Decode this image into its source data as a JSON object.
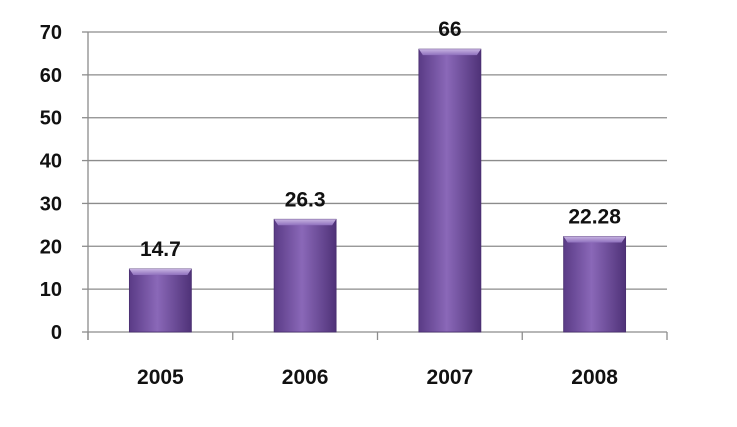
{
  "chart_data": {
    "type": "bar",
    "title": "",
    "xlabel": "",
    "ylabel": "",
    "categories": [
      "2005",
      "2006",
      "2007",
      "2008"
    ],
    "values": [
      14.7,
      26.3,
      66,
      22.28
    ],
    "data_labels": [
      "14.7",
      "26.3",
      "66",
      "22.28"
    ],
    "ylim": [
      0,
      70
    ],
    "yticks": [
      0,
      10,
      20,
      30,
      40,
      50,
      60,
      70
    ],
    "ytick_labels": [
      "0",
      "10",
      "20",
      "30",
      "40",
      "50",
      "60",
      "70"
    ],
    "grid": true,
    "legend": false,
    "colors": {
      "bar": "#7b5aa6",
      "bar_dark": "#4f3278",
      "bar_light": "#a58cc8",
      "grid": "#8c8c8c",
      "axis": "#8c8c8c",
      "text": "#111111"
    }
  }
}
